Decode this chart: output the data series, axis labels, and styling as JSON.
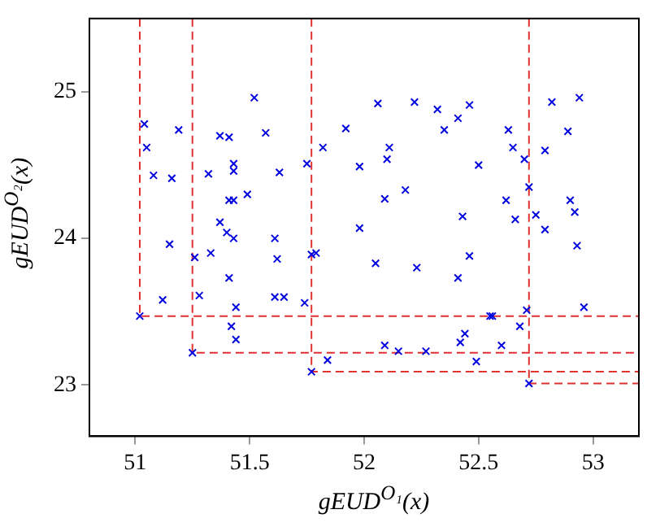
{
  "chart_data": {
    "type": "scatter",
    "xlabel": "gEUD$^{O₁}$(x)",
    "ylabel": "gEUD$^{O₂}$(x)",
    "xlim": [
      50.8,
      53.2
    ],
    "ylim": [
      22.65,
      25.5
    ],
    "xticks": [
      51,
      {
        "value": 51.5,
        "label": "51.5"
      },
      52,
      {
        "value": 52.5,
        "label": "52.5"
      },
      53
    ],
    "yticks": [
      23,
      24,
      25
    ],
    "grid": false,
    "legend": false,
    "marker": "cross",
    "series": [
      {
        "type": "scatter",
        "color": "#0000e0",
        "x": [
          51.04,
          51.05,
          51.08,
          51.16,
          51.19,
          51.52,
          51.37,
          51.41,
          51.57,
          51.32,
          51.43,
          51.43,
          51.63,
          51.75,
          51.82,
          51.92,
          51.98,
          51.49,
          51.41,
          51.43,
          51.37,
          51.4,
          51.43,
          51.61,
          51.98,
          51.15,
          51.26,
          51.33,
          51.41,
          51.28,
          51.12,
          51.44,
          51.62,
          51.61,
          51.65,
          51.74,
          51.77,
          51.79,
          51.02,
          51.42,
          51.44,
          51.25,
          51.84,
          51.77,
          52.06,
          52.22,
          52.32,
          52.46,
          52.41,
          52.35,
          52.63,
          52.82,
          52.94,
          52.89,
          52.11,
          52.1,
          52.5,
          52.65,
          52.7,
          52.79,
          52.72,
          52.18,
          52.09,
          52.62,
          52.9,
          52.92,
          52.43,
          52.66,
          52.75,
          52.79,
          52.93,
          52.05,
          52.23,
          52.46,
          52.41,
          52.55,
          52.56,
          52.71,
          52.96,
          52.68,
          52.44,
          52.42,
          52.6,
          52.09,
          52.15,
          52.27,
          52.49,
          52.72
        ],
        "values": [
          24.78,
          24.62,
          24.43,
          24.41,
          24.74,
          24.96,
          24.7,
          24.69,
          24.72,
          24.44,
          24.51,
          24.46,
          24.45,
          24.51,
          24.62,
          24.75,
          24.49,
          24.3,
          24.26,
          24.26,
          24.11,
          24.04,
          24.0,
          24.0,
          24.07,
          23.96,
          23.87,
          23.9,
          23.73,
          23.61,
          23.58,
          23.53,
          23.86,
          23.6,
          23.6,
          23.56,
          23.89,
          23.9,
          23.47,
          23.4,
          23.31,
          23.22,
          23.17,
          23.09,
          24.92,
          24.93,
          24.88,
          24.91,
          24.82,
          24.74,
          24.74,
          24.93,
          24.96,
          24.73,
          24.62,
          24.54,
          24.5,
          24.62,
          24.54,
          24.6,
          24.35,
          24.33,
          24.27,
          24.26,
          24.26,
          24.18,
          24.15,
          24.13,
          24.16,
          24.06,
          23.95,
          23.83,
          23.8,
          23.88,
          23.73,
          23.47,
          23.47,
          23.51,
          23.53,
          23.4,
          23.35,
          23.29,
          23.27,
          23.27,
          23.23,
          23.23,
          23.16,
          23.01
        ]
      },
      {
        "type": "line",
        "color": "#e03030",
        "line_style": "dashed",
        "marker": "none",
        "x": [
          51.02,
          51.02,
          53.2
        ],
        "values": [
          25.5,
          23.47,
          23.47
        ]
      },
      {
        "type": "line",
        "color": "#e03030",
        "line_style": "dashed",
        "marker": "none",
        "x": [
          51.25,
          51.25,
          53.2
        ],
        "values": [
          25.5,
          23.22,
          23.22
        ]
      },
      {
        "type": "line",
        "color": "#e03030",
        "line_style": "dashed",
        "marker": "none",
        "x": [
          51.77,
          51.77,
          53.2
        ],
        "values": [
          25.5,
          23.09,
          23.09
        ]
      },
      {
        "type": "line",
        "color": "#e03030",
        "line_style": "dashed",
        "marker": "none",
        "x": [
          52.72,
          52.72,
          53.2
        ],
        "values": [
          25.5,
          23.01,
          23.01
        ]
      }
    ]
  }
}
